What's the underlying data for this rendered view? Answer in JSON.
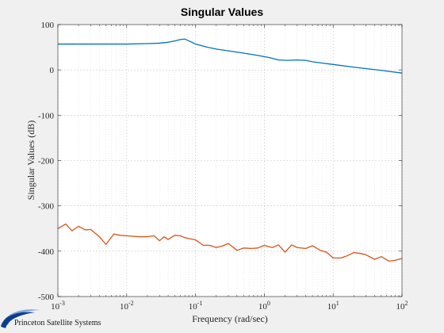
{
  "chart_data": {
    "type": "line",
    "title": "Singular Values",
    "xlabel": "Frequency (rad/sec)",
    "ylabel": "Singular Values (dB)",
    "xscale": "log",
    "xlim": [
      0.001,
      100
    ],
    "ylim": [
      -500,
      100
    ],
    "yticks": [
      100,
      0,
      -100,
      -200,
      -300,
      -400,
      -500
    ],
    "xticks": [
      {
        "value": 0.001,
        "base": "10",
        "exp": "-3"
      },
      {
        "value": 0.01,
        "base": "10",
        "exp": "-2"
      },
      {
        "value": 0.1,
        "base": "10",
        "exp": "-1"
      },
      {
        "value": 1,
        "base": "10",
        "exp": "0"
      },
      {
        "value": 10,
        "base": "10",
        "exp": "1"
      },
      {
        "value": 100,
        "base": "10",
        "exp": "2"
      }
    ],
    "grid": true,
    "series": [
      {
        "color": "#0072bd",
        "x": [
          0.001,
          0.003,
          0.01,
          0.02,
          0.03,
          0.04,
          0.05,
          0.06,
          0.07,
          0.08,
          0.1,
          0.15,
          0.2,
          0.3,
          0.5,
          0.8,
          1.2,
          1.6,
          2.2,
          3.0,
          4.0,
          5,
          7,
          10,
          20,
          50,
          100
        ],
        "y": [
          57,
          57,
          57,
          58,
          59,
          61,
          64,
          67,
          68,
          64,
          57,
          50,
          46,
          42,
          37,
          32,
          27,
          22,
          21,
          22,
          21,
          18,
          15,
          12,
          6,
          -1,
          -7
        ]
      },
      {
        "color": "#d95319",
        "x": [
          0.001,
          0.0013,
          0.0016,
          0.002,
          0.0025,
          0.003,
          0.004,
          0.005,
          0.0065,
          0.008,
          0.01,
          0.015,
          0.02,
          0.025,
          0.03,
          0.035,
          0.04,
          0.05,
          0.06,
          0.07,
          0.08,
          0.1,
          0.13,
          0.16,
          0.2,
          0.25,
          0.3,
          0.4,
          0.5,
          0.65,
          0.8,
          1.0,
          1.3,
          1.6,
          2.0,
          2.5,
          3.0,
          4.0,
          5.0,
          6.5,
          8.0,
          10,
          13,
          16,
          20,
          25,
          30,
          40,
          50,
          65,
          80,
          100
        ],
        "y": [
          -350,
          -340,
          -355,
          -345,
          -353,
          -352,
          -368,
          -385,
          -362,
          -365,
          -366,
          -368,
          -368,
          -366,
          -377,
          -368,
          -374,
          -365,
          -366,
          -370,
          -372,
          -375,
          -387,
          -387,
          -392,
          -388,
          -383,
          -398,
          -393,
          -394,
          -393,
          -387,
          -392,
          -386,
          -402,
          -386,
          -392,
          -394,
          -388,
          -398,
          -402,
          -415,
          -415,
          -410,
          -403,
          -405,
          -408,
          -418,
          -412,
          -422,
          -420,
          -416
        ]
      }
    ]
  },
  "branding": {
    "logo_text": "Princeton Satellite Systems",
    "logo_colors": [
      "#0b3d8c",
      "#7fa6d9"
    ]
  }
}
